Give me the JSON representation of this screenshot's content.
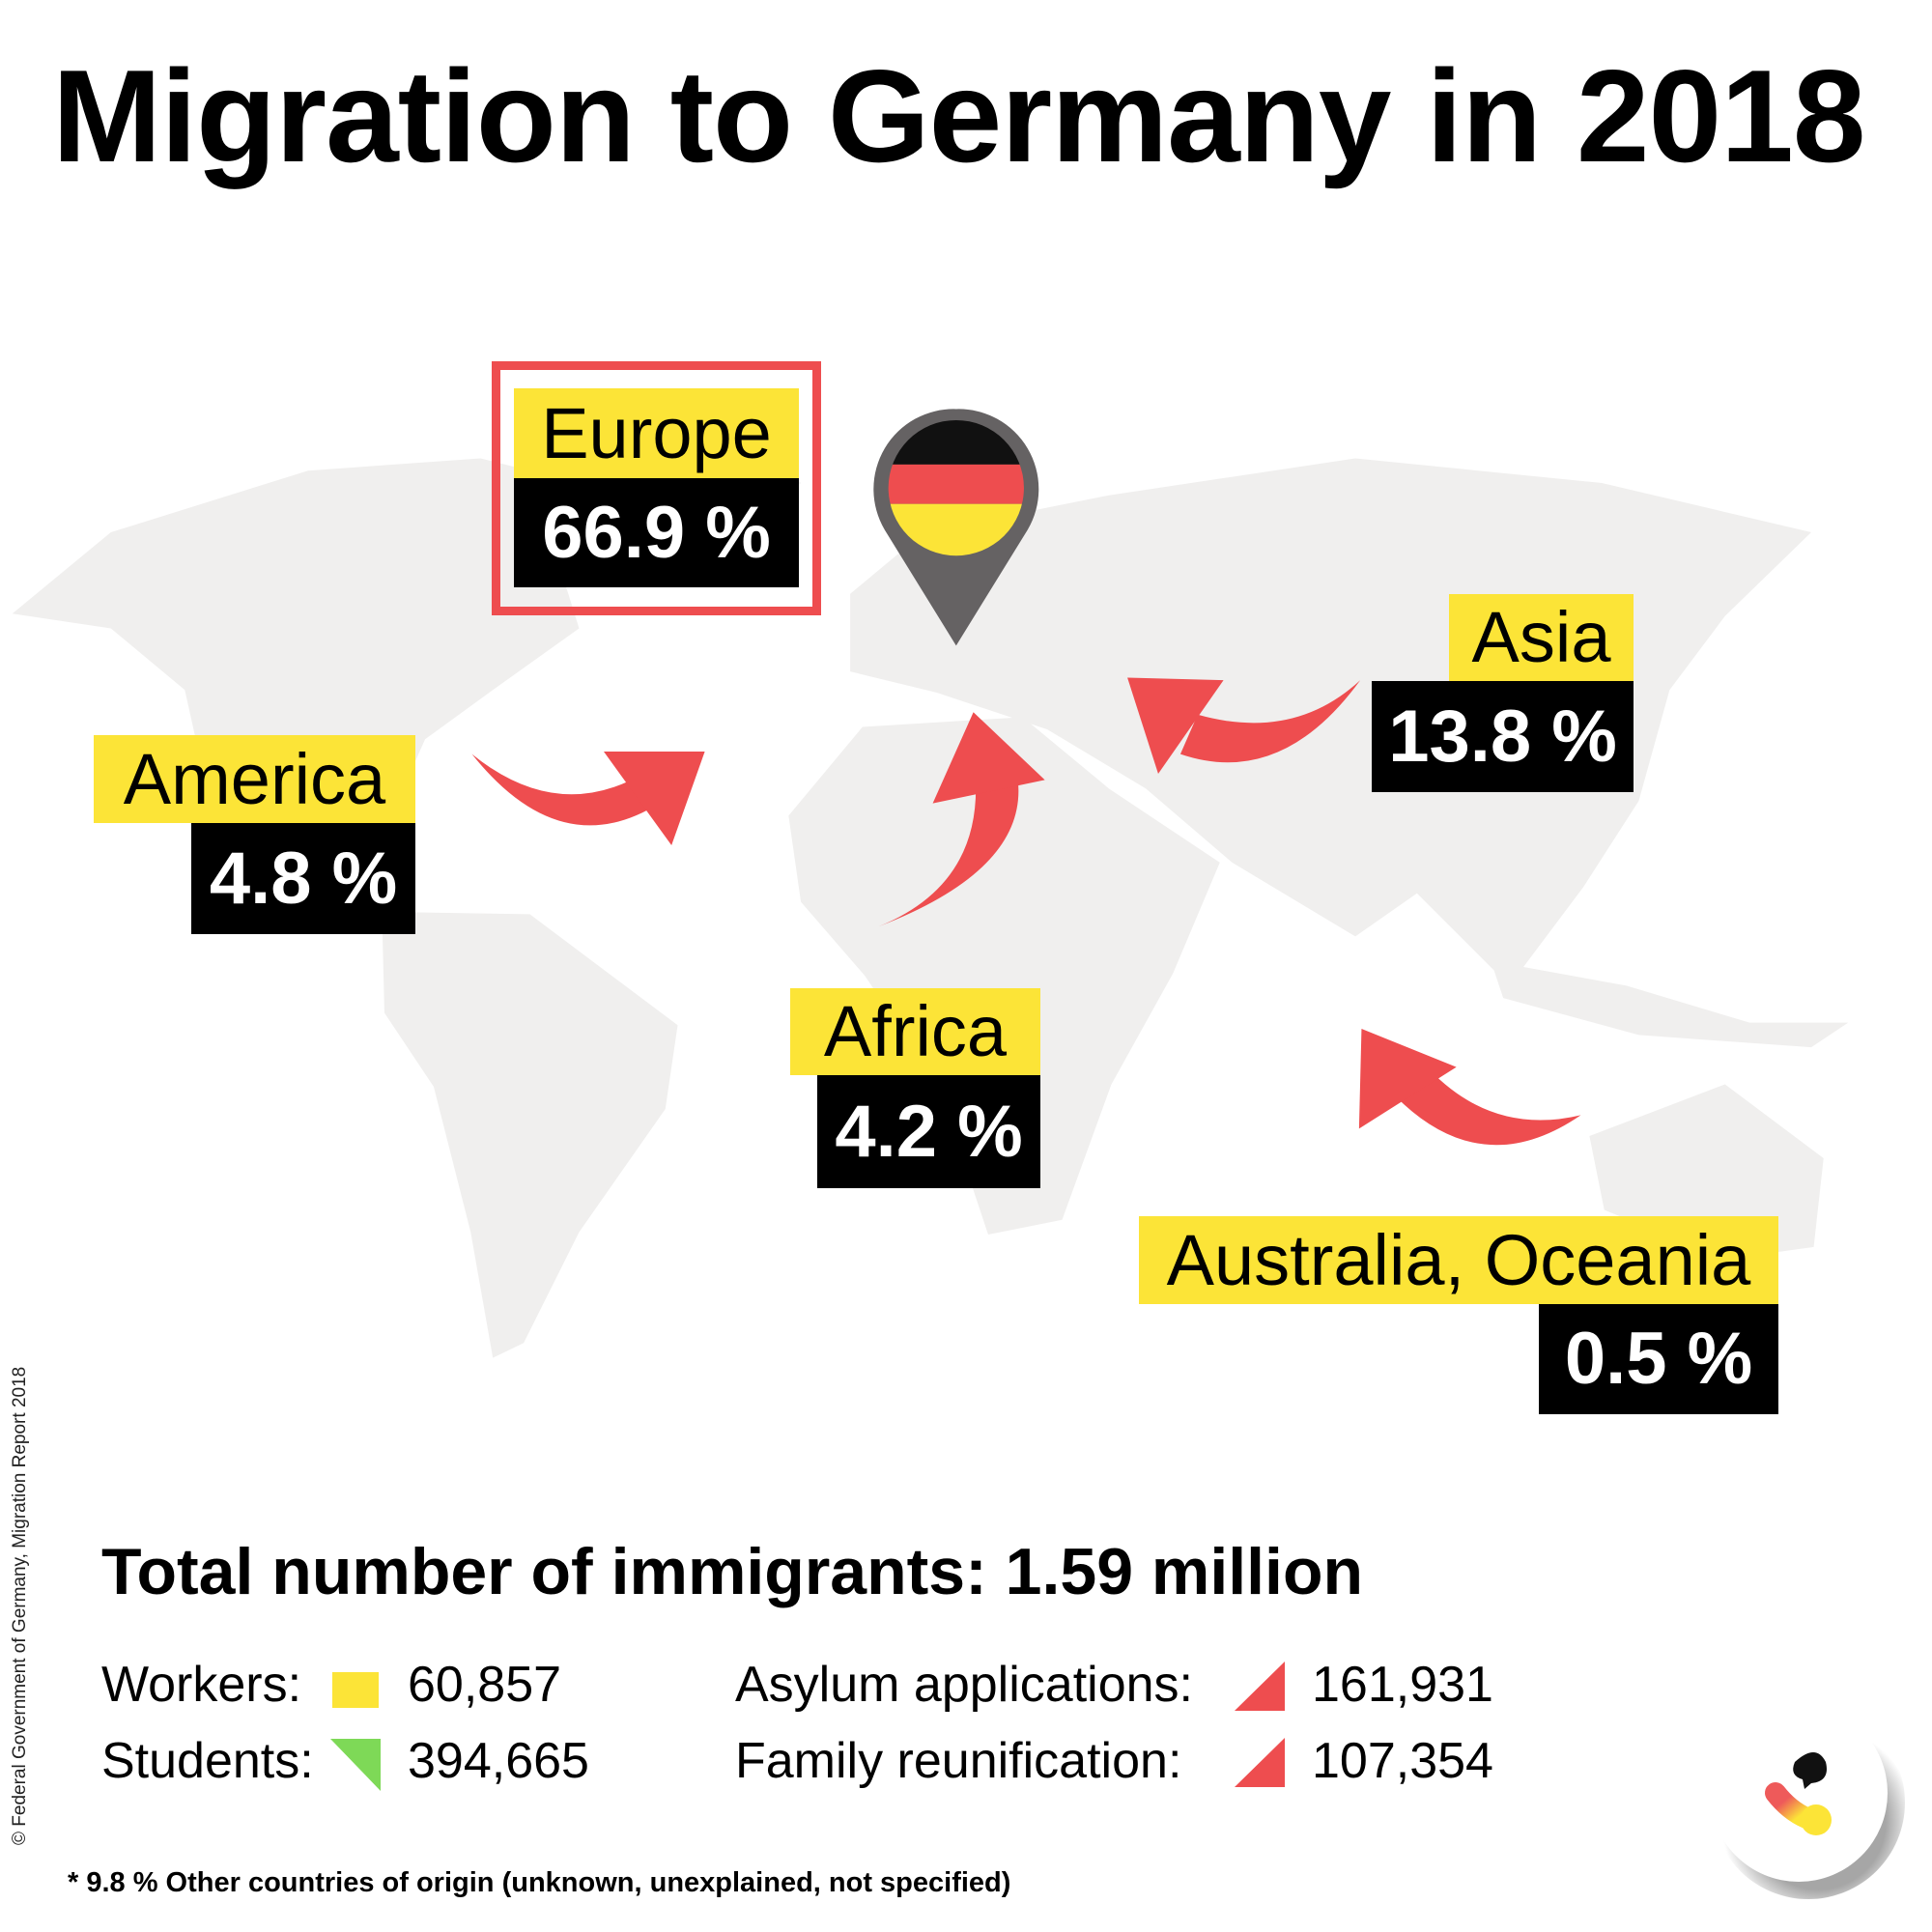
{
  "title": "Migration to Germany in 2018",
  "regions": {
    "europe": {
      "name": "Europe",
      "percent": "66.9 %"
    },
    "asia": {
      "name": "Asia",
      "percent": "13.8 %"
    },
    "america": {
      "name": "America",
      "percent": "4.8 %"
    },
    "africa": {
      "name": "Africa",
      "percent": "4.2 %"
    },
    "oceania": {
      "name": "Australia, Oceania",
      "percent": "0.5 %"
    }
  },
  "total": "Total number of immigrants: 1.59 million",
  "stats": {
    "workers": {
      "label": "Workers:",
      "value": "60,857",
      "color": "#fce437"
    },
    "students": {
      "label": "Students:",
      "value": "394,665",
      "color": "#7ed957"
    },
    "asylum": {
      "label": "Asylum applications:",
      "value": "161,931",
      "color": "#ee4d4f"
    },
    "family": {
      "label": "Family reunification:",
      "value": "107,354",
      "color": "#ee4d4f"
    }
  },
  "footnote": "* 9.8 % Other countries of origin (unknown, unexplained, not specified)",
  "copyright": "© Federal Government of Germany, Migration Report 2018",
  "colors": {
    "yellow": "#fce437",
    "red": "#ee4d4f",
    "black": "#000000",
    "map": "#f0efee",
    "pin": "#656263"
  }
}
